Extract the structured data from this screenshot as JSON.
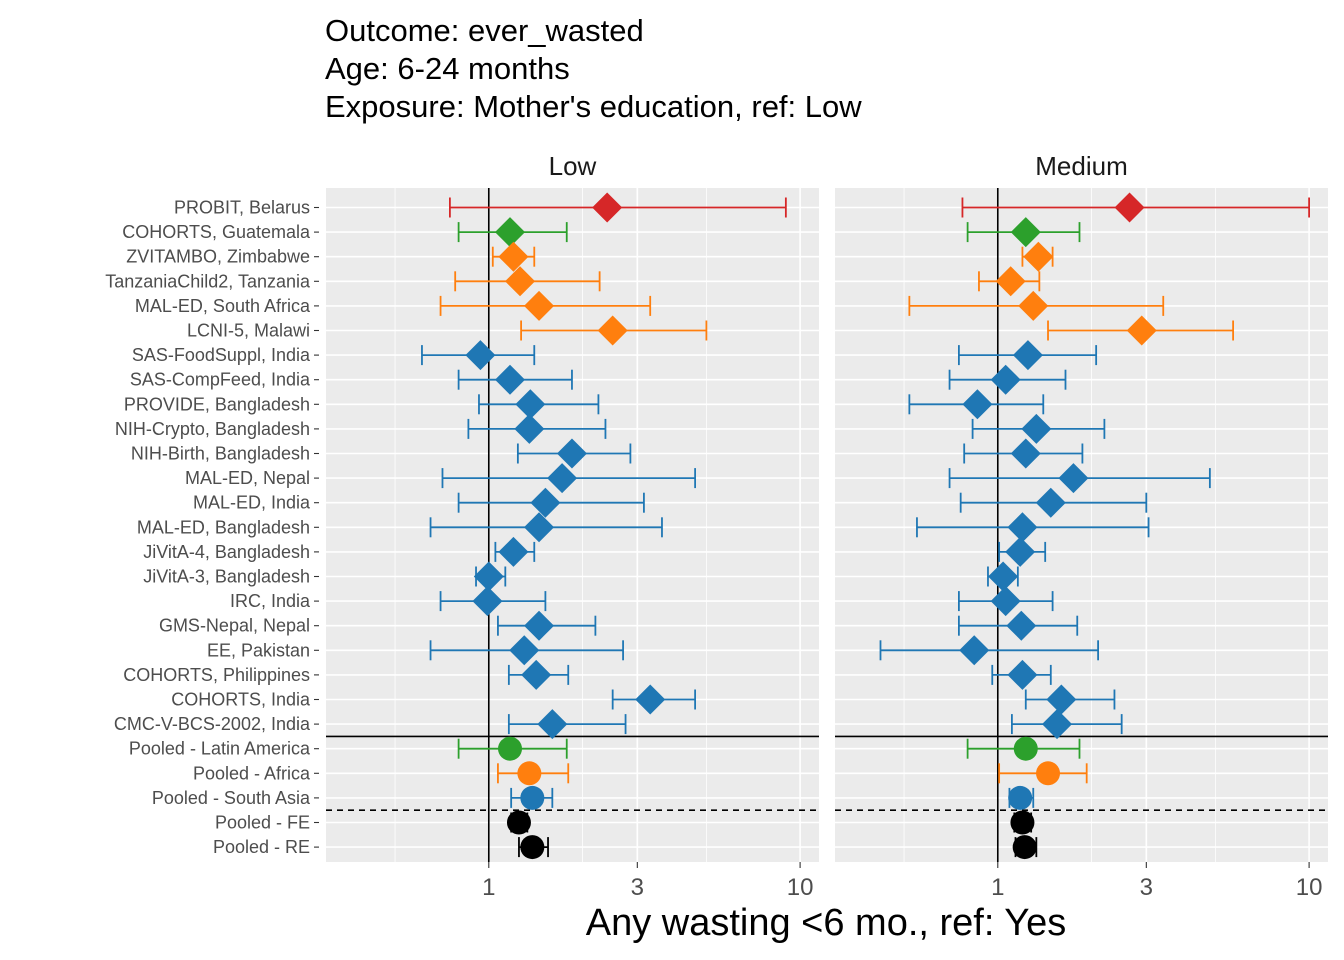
{
  "title_lines": [
    "Outcome: ever_wasted",
    "Age: 6-24 months",
    "Exposure: Mother's education, ref: Low"
  ],
  "colors": {
    "Latin America": "#2CA02C",
    "Africa": "#FF7F0E",
    "South Asia": "#1F77B4",
    "Europe": "#D62728",
    "Pooled": "#000000",
    "panel_bg": "#EBEBEB",
    "grid": "#FFFFFF"
  },
  "chart_data": {
    "type": "forest",
    "xscale": "log10",
    "xlim": [
      0.3,
      11.5
    ],
    "xticks": [
      1,
      3,
      10
    ],
    "xtick_labels": [
      "1",
      "3",
      "10"
    ],
    "xlabel": "Any wasting  <6 mo., ref: Yes",
    "reference_line": 1,
    "categories": [
      "PROBIT, Belarus",
      "COHORTS, Guatemala",
      "ZVITAMBO, Zimbabwe",
      "TanzaniaChild2, Tanzania",
      "MAL-ED, South Africa",
      "LCNI-5, Malawi",
      "SAS-FoodSuppl, India",
      "SAS-CompFeed, India",
      "PROVIDE, Bangladesh",
      "NIH-Crypto, Bangladesh",
      "NIH-Birth, Bangladesh",
      "MAL-ED, Nepal",
      "MAL-ED, India",
      "MAL-ED, Bangladesh",
      "JiVitA-4, Bangladesh",
      "JiVitA-3, Bangladesh",
      "IRC, India",
      "GMS-Nepal, Nepal",
      "EE, Pakistan",
      "COHORTS, Philippines",
      "COHORTS, India",
      "CMC-V-BCS-2002, India",
      "Pooled - Latin America",
      "Pooled - Africa",
      "Pooled - South Asia",
      "Pooled - FE",
      "Pooled - RE"
    ],
    "region": [
      "Europe",
      "Latin America",
      "Africa",
      "Africa",
      "Africa",
      "Africa",
      "South Asia",
      "South Asia",
      "South Asia",
      "South Asia",
      "South Asia",
      "South Asia",
      "South Asia",
      "South Asia",
      "South Asia",
      "South Asia",
      "South Asia",
      "South Asia",
      "South Asia",
      "South Asia",
      "South Asia",
      "South Asia",
      "Latin America",
      "Africa",
      "South Asia",
      "Pooled",
      "Pooled"
    ],
    "pooled": [
      false,
      false,
      false,
      false,
      false,
      false,
      false,
      false,
      false,
      false,
      false,
      false,
      false,
      false,
      false,
      false,
      false,
      false,
      false,
      false,
      false,
      false,
      true,
      true,
      true,
      true,
      true
    ],
    "panels": [
      {
        "label": "Low",
        "est": [
          2.4,
          1.17,
          1.2,
          1.26,
          1.45,
          2.5,
          0.94,
          1.17,
          1.36,
          1.35,
          1.85,
          1.72,
          1.52,
          1.45,
          1.2,
          1.0,
          0.99,
          1.45,
          1.3,
          1.42,
          3.3,
          1.6,
          1.17,
          1.35,
          1.38,
          1.25,
          1.38
        ],
        "lower": [
          0.75,
          0.8,
          1.03,
          0.78,
          0.7,
          1.27,
          0.61,
          0.8,
          0.93,
          0.86,
          1.24,
          0.71,
          0.8,
          0.65,
          1.05,
          0.91,
          0.7,
          1.07,
          0.65,
          1.16,
          2.5,
          1.16,
          0.8,
          1.07,
          1.18,
          1.18,
          1.25
        ],
        "upper": [
          9.0,
          1.78,
          1.4,
          2.27,
          3.3,
          5.0,
          1.4,
          1.85,
          2.25,
          2.37,
          2.85,
          4.6,
          3.15,
          3.6,
          1.4,
          1.13,
          1.52,
          2.2,
          2.7,
          1.8,
          4.6,
          2.75,
          1.78,
          1.8,
          1.6,
          1.33,
          1.55
        ]
      },
      {
        "label": "Medium",
        "est": [
          2.65,
          1.23,
          1.35,
          1.1,
          1.3,
          2.9,
          1.25,
          1.06,
          0.86,
          1.33,
          1.23,
          1.75,
          1.48,
          1.2,
          1.18,
          1.04,
          1.06,
          1.19,
          0.84,
          1.2,
          1.6,
          1.55,
          1.23,
          1.45,
          1.18,
          1.2,
          1.22
        ],
        "lower": [
          0.77,
          0.8,
          1.2,
          0.87,
          0.52,
          1.45,
          0.75,
          0.7,
          0.52,
          0.83,
          0.78,
          0.7,
          0.76,
          0.55,
          1.01,
          0.93,
          0.75,
          0.75,
          0.42,
          0.96,
          1.23,
          1.11,
          0.8,
          1.01,
          1.09,
          1.13,
          1.14
        ],
        "upper": [
          10.0,
          1.83,
          1.5,
          1.36,
          3.4,
          5.7,
          2.07,
          1.65,
          1.4,
          2.2,
          1.87,
          4.8,
          3.0,
          3.05,
          1.42,
          1.16,
          1.5,
          1.8,
          2.1,
          1.48,
          2.37,
          2.5,
          1.83,
          1.93,
          1.3,
          1.28,
          1.33
        ]
      }
    ],
    "separators": [
      {
        "after_index": 21,
        "style": "solid"
      },
      {
        "after_index": 24,
        "style": "dashed"
      }
    ]
  }
}
